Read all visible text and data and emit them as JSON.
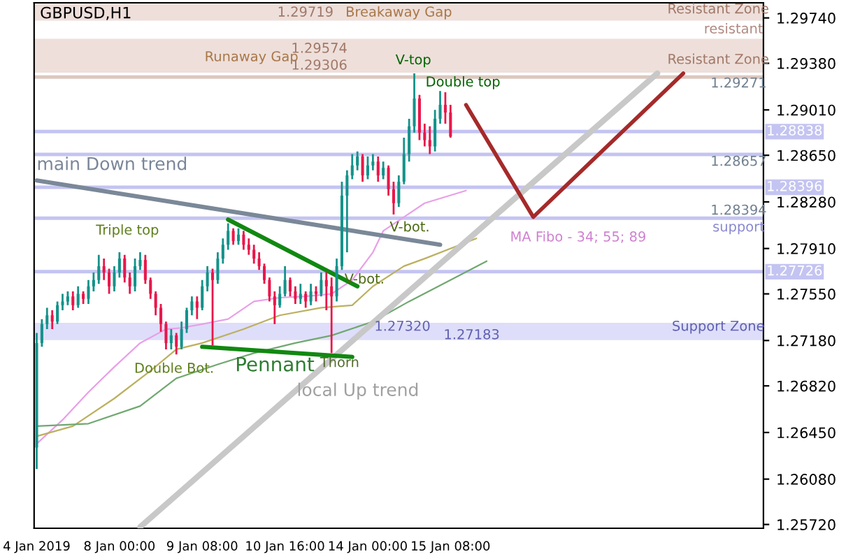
{
  "chart_data": {
    "type": "candlestick",
    "title": "GBPUSD,H1",
    "categories": [
      "4 Jan 2019",
      null,
      null,
      null,
      null,
      null,
      null,
      null,
      null,
      null,
      null,
      null,
      null,
      null,
      null,
      null,
      "8 Jan 00:00",
      null,
      null,
      null,
      null,
      null,
      null,
      null,
      null,
      null,
      null,
      null,
      null,
      null,
      null,
      null,
      "9 Jan 08:00",
      null,
      null,
      null,
      null,
      null,
      null,
      null,
      null,
      null,
      null,
      null,
      null,
      null,
      null,
      null,
      "10 Jan 16:00",
      null,
      null,
      null,
      null,
      null,
      null,
      null,
      null,
      null,
      null,
      null,
      null,
      null,
      null,
      null,
      "14 Jan 00:00",
      null,
      null,
      null,
      null,
      null,
      null,
      null,
      null,
      null,
      null,
      null,
      null,
      null,
      null,
      null,
      "15 Jan 08:00",
      null,
      null,
      null,
      null,
      null,
      null,
      null,
      null,
      null,
      null,
      null,
      null,
      null,
      null,
      null,
      null,
      null,
      null,
      null,
      null,
      null,
      null,
      null,
      null,
      null,
      null,
      null,
      null,
      null,
      null,
      null,
      null,
      null,
      null,
      null,
      null,
      null,
      null,
      null,
      null,
      null,
      null,
      null,
      null,
      null,
      null,
      null,
      null,
      null,
      null,
      null,
      null,
      null,
      null,
      null,
      null,
      null,
      null,
      null,
      null
    ],
    "ohlc": [
      [
        1.2633,
        1.2724,
        1.2616,
        1.2716
      ],
      [
        1.2716,
        1.2735,
        1.2713,
        1.2731
      ],
      [
        1.2731,
        1.2744,
        1.2727,
        1.2738
      ],
      [
        1.2738,
        1.2742,
        1.2727,
        1.2733
      ],
      [
        1.2733,
        1.2749,
        1.2731,
        1.2746
      ],
      [
        1.2746,
        1.2755,
        1.2742,
        1.2749
      ],
      [
        1.2749,
        1.2757,
        1.2746,
        1.2753
      ],
      [
        1.2753,
        1.2757,
        1.2742,
        1.2746
      ],
      [
        1.2746,
        1.2761,
        1.2744,
        1.2755
      ],
      [
        1.2755,
        1.2757,
        1.2747,
        1.2751
      ],
      [
        1.2751,
        1.2766,
        1.2747,
        1.2761
      ],
      [
        1.2761,
        1.2772,
        1.2757,
        1.2766
      ],
      [
        1.2766,
        1.2786,
        1.2763,
        1.2777
      ],
      [
        1.2777,
        1.2783,
        1.2766,
        1.2772
      ],
      [
        1.2772,
        1.2775,
        1.2755,
        1.2761
      ],
      [
        1.2761,
        1.2777,
        1.2757,
        1.2772
      ],
      [
        1.2772,
        1.2788,
        1.2768,
        1.2783
      ],
      [
        1.2783,
        1.2786,
        1.2764,
        1.2768
      ],
      [
        1.2768,
        1.2772,
        1.2755,
        1.2761
      ],
      [
        1.2761,
        1.2783,
        1.2757,
        1.2777
      ],
      [
        1.2777,
        1.2788,
        1.2774,
        1.2782
      ],
      [
        1.2782,
        1.2786,
        1.2763,
        1.2766
      ],
      [
        1.2766,
        1.2768,
        1.2751,
        1.2755
      ],
      [
        1.2755,
        1.2757,
        1.2738,
        1.2744
      ],
      [
        1.2744,
        1.2747,
        1.2725,
        1.2731
      ],
      [
        1.2731,
        1.2733,
        1.2711,
        1.2716
      ],
      [
        1.2716,
        1.2727,
        1.2711,
        1.2722
      ],
      [
        1.2722,
        1.2724,
        1.2707,
        1.2713
      ],
      [
        1.2713,
        1.2733,
        1.2711,
        1.2727
      ],
      [
        1.2727,
        1.2744,
        1.2724,
        1.2742
      ],
      [
        1.2742,
        1.2753,
        1.2738,
        1.2749
      ],
      [
        1.2749,
        1.2753,
        1.2735,
        1.2744
      ],
      [
        1.2744,
        1.2766,
        1.2742,
        1.2761
      ],
      [
        1.2761,
        1.2777,
        1.2757,
        1.2772
      ],
      [
        1.2772,
        1.2775,
        1.2714,
        1.2766
      ],
      [
        1.2766,
        1.2788,
        1.2763,
        1.2783
      ],
      [
        1.2783,
        1.2799,
        1.2779,
        1.2794
      ],
      [
        1.2794,
        1.2811,
        1.279,
        1.2805
      ],
      [
        1.2805,
        1.2807,
        1.2794,
        1.2797
      ],
      [
        1.2797,
        1.2807,
        1.2794,
        1.2802
      ],
      [
        1.2802,
        1.2805,
        1.279,
        1.2794
      ],
      [
        1.2794,
        1.2799,
        1.2786,
        1.279
      ],
      [
        1.279,
        1.2794,
        1.2779,
        1.2783
      ],
      [
        1.2783,
        1.2788,
        1.2774,
        1.2777
      ],
      [
        1.2777,
        1.2779,
        1.2763,
        1.2766
      ],
      [
        1.2766,
        1.2768,
        1.2749,
        1.2753
      ],
      [
        1.2753,
        1.2757,
        1.2731,
        1.2746
      ],
      [
        1.2746,
        1.2761,
        1.2744,
        1.2755
      ],
      [
        1.2755,
        1.2777,
        1.2753,
        1.2766
      ],
      [
        1.2766,
        1.2768,
        1.2753,
        1.2757
      ],
      [
        1.2757,
        1.2761,
        1.2747,
        1.2751
      ],
      [
        1.2751,
        1.2763,
        1.2747,
        1.2755
      ],
      [
        1.2755,
        1.2757,
        1.2744,
        1.2749
      ],
      [
        1.2749,
        1.2763,
        1.2746,
        1.2757
      ],
      [
        1.2757,
        1.2761,
        1.2749,
        1.2755
      ],
      [
        1.2755,
        1.2772,
        1.2753,
        1.2766
      ],
      [
        1.2766,
        1.2772,
        1.2742,
        1.2761
      ],
      [
        1.2761,
        1.2768,
        1.2708,
        1.2753
      ],
      [
        1.2753,
        1.2783,
        1.2749,
        1.2777
      ],
      [
        1.2777,
        1.2844,
        1.2774,
        1.2833
      ],
      [
        1.2833,
        1.2853,
        1.2788,
        1.2849
      ],
      [
        1.2849,
        1.2866,
        1.2846,
        1.2857
      ],
      [
        1.2857,
        1.2868,
        1.2853,
        1.2864
      ],
      [
        1.2864,
        1.2866,
        1.2844,
        1.2849
      ],
      [
        1.2849,
        1.2864,
        1.2846,
        1.2857
      ],
      [
        1.2857,
        1.2866,
        1.2853,
        1.286
      ],
      [
        1.286,
        1.2864,
        1.2844,
        1.2849
      ],
      [
        1.2849,
        1.286,
        1.2846,
        1.2855
      ],
      [
        1.2855,
        1.2857,
        1.2833,
        1.2838
      ],
      [
        1.2838,
        1.2844,
        1.2818,
        1.2827
      ],
      [
        1.2827,
        1.2849,
        1.2824,
        1.2844
      ],
      [
        1.2844,
        1.2879,
        1.2842,
        1.2866
      ],
      [
        1.2866,
        1.2894,
        1.286,
        1.2888
      ],
      [
        1.2888,
        1.293,
        1.2883,
        1.291
      ],
      [
        1.291,
        1.2913,
        1.2877,
        1.2883
      ],
      [
        1.2883,
        1.289,
        1.2872,
        1.2877
      ],
      [
        1.2877,
        1.2888,
        1.2866,
        1.2872
      ],
      [
        1.2872,
        1.2901,
        1.2868,
        1.2894
      ],
      [
        1.2894,
        1.2916,
        1.289,
        1.2905
      ],
      [
        1.2905,
        1.2915,
        1.289,
        1.2899
      ],
      [
        1.2899,
        1.2905,
        1.2879,
        1.288
      ],
      null,
      null,
      null,
      null,
      null,
      null,
      null,
      null,
      null,
      null,
      null,
      null,
      null,
      null,
      null,
      null,
      null,
      null,
      null,
      null,
      null,
      null,
      null,
      null,
      null,
      null,
      null,
      null,
      null,
      null,
      null,
      null,
      null,
      null,
      null,
      null,
      null,
      null,
      null,
      null,
      null,
      null,
      null,
      null,
      null,
      null,
      null,
      null,
      null,
      null,
      null,
      null,
      null,
      null,
      null,
      null,
      null,
      null,
      null,
      null
    ],
    "series": [
      {
        "type": "line",
        "color": "#e8a0e8",
        "values": [
          1.2636,
          null,
          null,
          null,
          null,
          1.2655,
          null,
          null,
          null,
          null,
          1.2677,
          null,
          null,
          null,
          null,
          1.2697,
          null,
          null,
          null,
          null,
          1.2716,
          null,
          null,
          null,
          null,
          1.2727,
          null,
          null,
          1.2728,
          null,
          null,
          null,
          1.2731,
          null,
          null,
          null,
          null,
          1.2735,
          null,
          null,
          null,
          null,
          1.2749,
          null,
          null,
          null,
          null,
          1.2752,
          null,
          null,
          null,
          null,
          1.2753,
          null,
          null,
          null,
          null,
          1.2755,
          null,
          null,
          null,
          1.2766,
          null,
          null,
          null,
          1.2788,
          null,
          1.2805,
          null,
          null,
          null,
          1.2816,
          null,
          null,
          null,
          1.2827,
          null,
          null,
          null,
          null,
          null,
          null,
          null,
          1.2837,
          null,
          null,
          null,
          null,
          null,
          null,
          null,
          null,
          null,
          null,
          null,
          null,
          null,
          null,
          null,
          null,
          null,
          null,
          null,
          null,
          null,
          null,
          null,
          null,
          null,
          null,
          null,
          null,
          null,
          null,
          null,
          null,
          null,
          null,
          null,
          null,
          null,
          null,
          null,
          null,
          null,
          null,
          null,
          null,
          null,
          null,
          null,
          null,
          null,
          null,
          null,
          null,
          null,
          null,
          null,
          null,
          null
        ]
      },
      {
        "type": "line",
        "color": "#bcb060",
        "values": [
          1.2642,
          null,
          null,
          null,
          null,
          null,
          null,
          1.265,
          null,
          null,
          null,
          null,
          null,
          null,
          null,
          1.2672,
          null,
          null,
          null,
          null,
          null,
          null,
          1.2694,
          null,
          null,
          null,
          null,
          1.2711,
          null,
          null,
          null,
          null,
          1.2716,
          null,
          null,
          null,
          null,
          null,
          null,
          null,
          1.2727,
          null,
          null,
          null,
          null,
          null,
          null,
          1.2738,
          null,
          null,
          null,
          null,
          null,
          null,
          null,
          1.2744,
          null,
          null,
          null,
          null,
          null,
          1.2746,
          null,
          null,
          null,
          1.2761,
          null,
          null,
          null,
          null,
          null,
          1.2777,
          null,
          null,
          null,
          1.2783,
          null,
          null,
          null,
          null,
          null,
          null,
          null,
          null,
          null,
          1.2799,
          null,
          null,
          null,
          null,
          null,
          null,
          null,
          null,
          null,
          null,
          null,
          null,
          null,
          null,
          null,
          null,
          null,
          null,
          null,
          null,
          null,
          null,
          null,
          null,
          null,
          null,
          null,
          null,
          null,
          null,
          null,
          null,
          null,
          null,
          null,
          null,
          null,
          null,
          null,
          null,
          null,
          null,
          null,
          null,
          null,
          null,
          null,
          null,
          null,
          null,
          null,
          null,
          null,
          null,
          null
        ]
      },
      {
        "type": "line",
        "color": "#70a870",
        "values": [
          1.265,
          null,
          null,
          null,
          null,
          null,
          null,
          null,
          null,
          null,
          1.2652,
          null,
          null,
          null,
          null,
          null,
          null,
          null,
          null,
          null,
          1.2666,
          null,
          null,
          null,
          null,
          null,
          null,
          1.2688,
          null,
          null,
          null,
          null,
          null,
          null,
          null,
          1.2699,
          null,
          null,
          null,
          null,
          null,
          null,
          1.2708,
          null,
          null,
          null,
          null,
          null,
          null,
          null,
          1.2716,
          null,
          null,
          null,
          null,
          null,
          null,
          1.2722,
          null,
          null,
          null,
          null,
          null,
          null,
          null,
          1.2733,
          null,
          null,
          null,
          null,
          null,
          null,
          1.2749,
          null,
          null,
          null,
          null,
          null,
          null,
          null,
          1.2766,
          null,
          null,
          null,
          null,
          null,
          null,
          1.2781,
          null,
          null,
          null,
          null,
          null,
          null,
          null,
          null,
          null,
          null,
          null,
          null,
          null,
          null,
          null,
          null,
          null,
          null,
          null,
          null,
          null,
          null,
          null,
          null,
          null,
          null,
          null,
          null,
          null,
          null,
          null,
          null,
          null,
          null,
          null,
          null,
          null,
          null,
          null,
          null,
          null,
          null,
          null,
          null,
          null,
          null,
          null,
          null,
          null,
          null,
          null,
          null,
          null
        ]
      },
      {
        "type": "line",
        "color": "#7a8898",
        "values": [
          1.2845,
          null,
          null,
          null,
          null,
          null,
          null,
          null,
          null,
          null,
          null,
          null,
          null,
          null,
          null,
          null,
          null,
          null,
          null,
          null,
          null,
          null,
          null,
          null,
          null,
          null,
          null,
          null,
          null,
          null,
          null,
          null,
          null,
          null,
          null,
          null,
          null,
          null,
          null,
          null,
          null,
          null,
          null,
          null,
          null,
          null,
          null,
          null,
          null,
          null,
          null,
          null,
          null,
          null,
          null,
          null,
          null,
          null,
          null,
          null,
          null,
          null,
          null,
          null,
          null,
          null,
          null,
          null,
          null,
          null,
          null,
          null,
          null,
          null,
          null,
          null,
          null,
          null,
          1.2794,
          null,
          null,
          null,
          null,
          null,
          null,
          null,
          null,
          null,
          null,
          null,
          null,
          null,
          null,
          null,
          null,
          null,
          null,
          null,
          null,
          null,
          null,
          null,
          null,
          null,
          null,
          null,
          null,
          null,
          null,
          null,
          null,
          null,
          null,
          null,
          null,
          null,
          null,
          null,
          null,
          null,
          null,
          null,
          null,
          null,
          null,
          null,
          null,
          null,
          null,
          null,
          null,
          null,
          null,
          null,
          null,
          null,
          null,
          null,
          null,
          null,
          null
        ]
      },
      {
        "type": "line",
        "color": "#c8c8c8",
        "values": [
          null,
          null,
          null,
          null,
          null,
          null,
          null,
          null,
          null,
          null,
          null,
          null,
          null,
          null,
          null,
          null,
          null,
          null,
          null,
          null,
          1.257,
          null,
          null,
          null,
          null,
          null,
          null,
          null,
          null,
          null,
          null,
          null,
          null,
          null,
          null,
          null,
          null,
          null,
          null,
          null,
          null,
          null,
          null,
          null,
          null,
          null,
          null,
          null,
          null,
          null,
          null,
          null,
          null,
          null,
          null,
          null,
          null,
          null,
          null,
          null,
          null,
          null,
          null,
          null,
          null,
          null,
          null,
          null,
          null,
          null,
          null,
          null,
          null,
          null,
          null,
          null,
          null,
          null,
          null,
          null,
          null,
          null,
          null,
          null,
          null,
          null,
          null,
          null,
          null,
          null,
          null,
          null,
          null,
          null,
          null,
          null,
          null,
          null,
          null,
          null,
          null,
          null,
          null,
          null,
          null,
          null,
          null,
          null,
          null,
          null,
          null,
          null,
          null,
          null,
          null,
          null,
          null,
          null,
          null,
          null,
          1.293,
          null,
          null,
          null,
          null,
          null,
          null,
          null,
          null,
          null,
          null,
          null,
          null,
          null,
          null,
          null,
          null,
          null,
          null,
          null,
          null
        ]
      },
      {
        "type": "line",
        "color": "#118811",
        "values": [
          null,
          null,
          null,
          null,
          null,
          null,
          null,
          null,
          null,
          null,
          null,
          null,
          null,
          null,
          null,
          null,
          null,
          null,
          null,
          null,
          null,
          null,
          null,
          null,
          null,
          null,
          null,
          null,
          null,
          null,
          null,
          null,
          null,
          null,
          null,
          null,
          null,
          1.2814,
          null,
          null,
          null,
          null,
          null,
          null,
          null,
          null,
          null,
          null,
          null,
          null,
          null,
          null,
          null,
          null,
          null,
          null,
          null,
          null,
          null,
          null,
          null,
          null,
          1.2761,
          null,
          null,
          null,
          null,
          null,
          null,
          null,
          null,
          null,
          null,
          null,
          null,
          null,
          null,
          null,
          null,
          null,
          null,
          null,
          null,
          null,
          null,
          null,
          null,
          null,
          null,
          null,
          null,
          null,
          null,
          null,
          null,
          null,
          null,
          null,
          null,
          null,
          null,
          null,
          null,
          null,
          null,
          null,
          null,
          null,
          null,
          null,
          null,
          null,
          null,
          null,
          null,
          null,
          null,
          null,
          null,
          null,
          null,
          null,
          null,
          null,
          null,
          null,
          null,
          null,
          null,
          null,
          null,
          null,
          null,
          null,
          null,
          null,
          null,
          null,
          null,
          null,
          null
        ]
      },
      {
        "type": "line",
        "color": "#118811",
        "values": [
          null,
          null,
          null,
          null,
          null,
          null,
          null,
          null,
          null,
          null,
          null,
          null,
          null,
          null,
          null,
          null,
          null,
          null,
          null,
          null,
          null,
          null,
          null,
          null,
          null,
          null,
          null,
          null,
          null,
          null,
          null,
          null,
          1.2713,
          null,
          null,
          null,
          null,
          null,
          null,
          null,
          null,
          null,
          null,
          null,
          null,
          null,
          null,
          null,
          null,
          null,
          null,
          null,
          null,
          null,
          null,
          null,
          null,
          null,
          null,
          null,
          null,
          1.2705,
          null,
          null,
          null,
          null,
          null,
          null,
          null,
          null,
          null,
          null,
          null,
          null,
          null,
          null,
          null,
          null,
          null,
          null,
          null,
          null,
          null,
          null,
          null,
          null,
          null,
          null,
          null,
          null,
          null,
          null,
          null,
          null,
          null,
          null,
          null,
          null,
          null,
          null,
          null,
          null,
          null,
          null,
          null,
          null,
          null,
          null,
          null,
          null,
          null,
          null,
          null,
          null,
          null,
          null,
          null,
          null,
          null,
          null,
          null,
          null,
          null,
          null,
          null,
          null,
          null,
          null,
          null,
          null,
          null,
          null,
          null,
          null,
          null,
          null,
          null,
          null,
          null,
          null,
          null
        ]
      },
      {
        "type": "line",
        "color": "#a52a2a",
        "values": [
          null,
          null,
          null,
          null,
          null,
          null,
          null,
          null,
          null,
          null,
          null,
          null,
          null,
          null,
          null,
          null,
          null,
          null,
          null,
          null,
          null,
          null,
          null,
          null,
          null,
          null,
          null,
          null,
          null,
          null,
          null,
          null,
          null,
          null,
          null,
          null,
          null,
          null,
          null,
          null,
          null,
          null,
          null,
          null,
          null,
          null,
          null,
          null,
          null,
          null,
          null,
          null,
          null,
          null,
          null,
          null,
          null,
          null,
          null,
          null,
          null,
          null,
          null,
          null,
          null,
          null,
          null,
          null,
          null,
          null,
          null,
          null,
          null,
          null,
          null,
          null,
          null,
          null,
          null,
          null,
          null,
          null,
          null,
          1.2905,
          null,
          null,
          null,
          null,
          null,
          null,
          null,
          null,
          null,
          null,
          null,
          null,
          1.2816,
          null,
          null,
          null,
          null,
          null,
          null,
          null,
          null,
          null,
          null,
          null,
          null,
          null,
          null,
          null,
          null,
          null,
          null,
          null,
          null,
          null,
          null,
          null,
          null,
          null,
          null,
          null,
          null,
          1.293,
          null,
          null,
          null,
          null,
          null,
          null,
          null,
          null,
          null,
          null,
          null,
          null,
          null,
          null,
          null
        ]
      }
    ],
    "bands": [
      {
        "axis": "y",
        "from": 1.29719,
        "to": 1.2986,
        "color": "#eedfda"
      },
      {
        "axis": "y",
        "from": 1.29306,
        "to": 1.29574,
        "color": "#eedfda"
      },
      {
        "axis": "y",
        "from": 1.27183,
        "to": 1.2732,
        "color": "#dedefa"
      }
    ],
    "ref_lines": [
      {
        "axis": "y",
        "value": 1.29271,
        "color": "#dcc8c0"
      },
      {
        "axis": "y",
        "value": 1.28838,
        "label": "1.28838",
        "color": "#c4c4f2"
      },
      {
        "axis": "y",
        "value": 1.28657,
        "color": "#c4c4f2"
      },
      {
        "axis": "y",
        "value": 1.28396,
        "label": "1.28396",
        "color": "#c4c4f2"
      },
      {
        "axis": "y",
        "value": 1.2815,
        "color": "#c4c4f2"
      },
      {
        "axis": "y",
        "value": 1.27726,
        "label": "1.27726",
        "color": "#c4c4f2"
      }
    ],
    "annotations": [
      "V-top",
      "Double top",
      "V-bot.",
      "V-bot.",
      "Triple top",
      "Double Bot.",
      "Pennant",
      "Thorn",
      "main Down trend",
      "local Up trend",
      "MA Fibo - 34; 55; 89",
      "1.29719",
      "Breakaway Gap",
      "Resistant Zone",
      "resistant",
      "Runaway Gap",
      "1.29574",
      "1.29306",
      "Resistant Zone",
      "1.29271",
      "1.28657",
      "1.28394",
      "support",
      "1.27320",
      "1.27183",
      "Support Zone"
    ],
    "ylim": [
      1.2569,
      1.2986
    ],
    "yticks": [
      {
        "value": 1.2572,
        "label": "1.25720"
      },
      {
        "value": 1.2608,
        "label": "1.26080"
      },
      {
        "value": 1.2645,
        "label": "1.26450"
      },
      {
        "value": 1.2682,
        "label": "1.26820"
      },
      {
        "value": 1.2718,
        "label": "1.27180"
      },
      {
        "value": 1.2755,
        "label": "1.27550"
      },
      {
        "value": 1.2791,
        "label": "1.27910"
      },
      {
        "value": 1.2828,
        "label": "1.28280"
      },
      {
        "value": 1.2865,
        "label": "1.28650"
      },
      {
        "value": 1.2901,
        "label": "1.29010"
      },
      {
        "value": 1.2938,
        "label": "1.29380"
      },
      {
        "value": 1.2974,
        "label": "1.29740"
      }
    ],
    "grid": false,
    "legend": false
  }
}
